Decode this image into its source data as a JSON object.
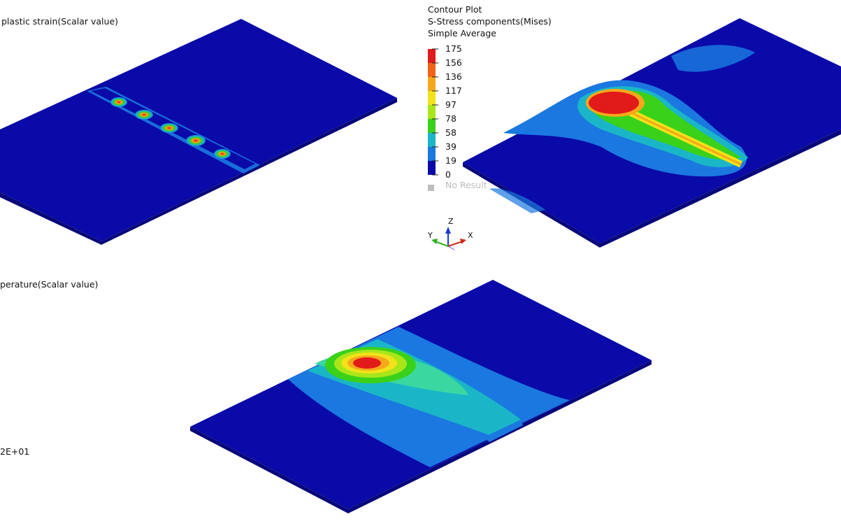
{
  "viewports": {
    "top_left": {
      "title": "plastic strain(Scalar value)"
    },
    "top_right": {
      "legend": {
        "title": "Contour Plot",
        "result": "S-Stress components(Mises)",
        "averaging": "Simple Average",
        "values": [
          "175",
          "156",
          "136",
          "117",
          "97",
          "78",
          "58",
          "39",
          "19",
          "0"
        ],
        "colors": [
          "#e11a1a",
          "#f0641a",
          "#f5a81a",
          "#f2e21a",
          "#a8e61a",
          "#3ad11a",
          "#1ab6c8",
          "#1a78e0",
          "#0a0aa8"
        ],
        "no_result": "No Result",
        "no_result_color": "#bdbdbd"
      }
    },
    "bottom": {
      "title": "perature(Scalar value)",
      "value_label": "2E+01"
    }
  },
  "triad": {
    "z": "Z",
    "y": "Y",
    "x": "X"
  }
}
